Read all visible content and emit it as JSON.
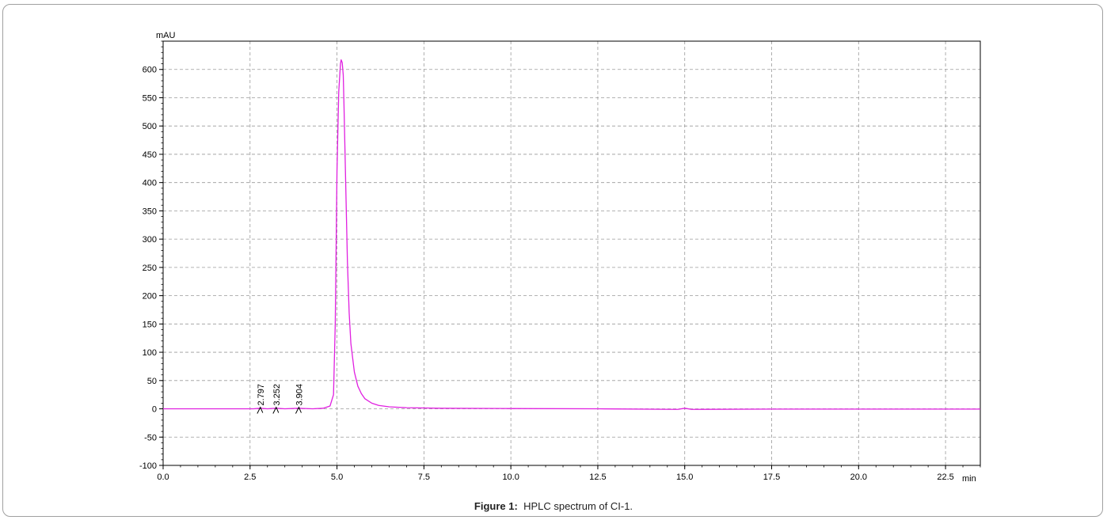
{
  "chart_data": {
    "type": "line",
    "ylabel": "mAU",
    "xlabel": "min",
    "xlim": [
      0,
      23.5
    ],
    "ylim": [
      -100,
      650
    ],
    "xticks": [
      0.0,
      2.5,
      5.0,
      7.5,
      10.0,
      12.5,
      15.0,
      17.5,
      20.0,
      22.5
    ],
    "xtick_labels": [
      "0.0",
      "2.5",
      "5.0",
      "7.5",
      "10.0",
      "12.5",
      "15.0",
      "17.5",
      "20.0",
      "22.5"
    ],
    "yticks": [
      -100,
      -50,
      0,
      50,
      100,
      150,
      200,
      250,
      300,
      350,
      400,
      450,
      500,
      550,
      600
    ],
    "ytick_labels": [
      "-100",
      "-50",
      "0",
      "50",
      "100",
      "150",
      "200",
      "250",
      "300",
      "350",
      "400",
      "450",
      "500",
      "550",
      "600"
    ],
    "grid": true,
    "series": [
      {
        "color": "#e020e0",
        "x": [
          0,
          2.6,
          2.797,
          3.0,
          3.252,
          3.5,
          3.904,
          4.3,
          4.6,
          4.8,
          4.9,
          4.95,
          5.0,
          5.05,
          5.1,
          5.12,
          5.15,
          5.18,
          5.2,
          5.25,
          5.3,
          5.35,
          5.4,
          5.5,
          5.6,
          5.7,
          5.8,
          6.0,
          6.2,
          6.5,
          7.0,
          8.0,
          10.0,
          12.5,
          14.8,
          15.0,
          15.2,
          17.5,
          20.0,
          23.5
        ],
        "y": [
          0,
          0,
          1,
          0,
          1,
          0,
          1,
          0,
          1,
          5,
          25,
          150,
          420,
          560,
          610,
          617,
          612,
          590,
          540,
          400,
          260,
          170,
          115,
          65,
          40,
          27,
          18,
          10,
          6,
          3.5,
          2,
          1,
          0.5,
          0,
          -1,
          1,
          -1,
          -0.5,
          -0.5,
          -0.5
        ]
      }
    ],
    "peak_labels": [
      {
        "x": 2.797,
        "label": "2.797"
      },
      {
        "x": 3.252,
        "label": "3.252"
      },
      {
        "x": 3.904,
        "label": "3.904"
      }
    ]
  },
  "caption": {
    "label": "Figure 1:",
    "text": "HPLC spectrum of CI-1."
  }
}
